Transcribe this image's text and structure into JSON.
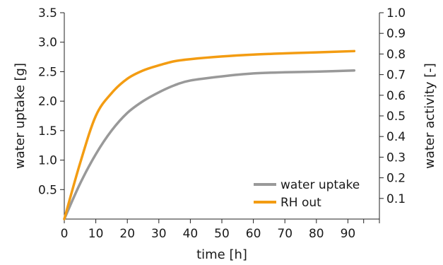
{
  "chart_data": {
    "type": "line",
    "xlabel": "time [h]",
    "ylabel_left": "water uptake [g]",
    "ylabel_right": "water activity [-]",
    "xlim": [
      0,
      100
    ],
    "ylim_left": [
      0,
      3.5
    ],
    "ylim_right": [
      0,
      1.0
    ],
    "x_ticks": [
      0,
      10,
      20,
      30,
      40,
      50,
      60,
      70,
      80,
      90
    ],
    "x_tick_labels": [
      "0",
      "10",
      "20",
      "30",
      "40",
      "50",
      "60",
      "70",
      "80",
      "90"
    ],
    "y_left_ticks": [
      0.5,
      1.0,
      1.5,
      2.0,
      2.5,
      3.0,
      3.5
    ],
    "y_left_tick_labels": [
      "0.5",
      "1.0",
      "1.5",
      "2.0",
      "2.5",
      "3.0",
      "3.5"
    ],
    "y_right_ticks": [
      0.1,
      0.2,
      0.3,
      0.4,
      0.5,
      0.6,
      0.7,
      0.8,
      0.9,
      1.0
    ],
    "y_right_tick_labels": [
      "0.1",
      "0.2",
      "0.3",
      "0.4",
      "0.5",
      "0.6",
      "0.7",
      "0.8",
      "0.9",
      "1.0"
    ],
    "grid": false,
    "legend_position": "bottom-right",
    "series": [
      {
        "name": "water uptake",
        "axis": "left",
        "color": "#999999",
        "x": [
          0,
          5,
          10,
          15,
          20,
          25,
          30,
          35,
          40,
          50,
          60,
          70,
          80,
          92
        ],
        "y": [
          0.0,
          0.6,
          1.1,
          1.5,
          1.8,
          2.0,
          2.15,
          2.27,
          2.35,
          2.42,
          2.47,
          2.49,
          2.5,
          2.52
        ]
      },
      {
        "name": "RH out",
        "axis": "right",
        "color": "#f39c12",
        "x": [
          0,
          5,
          10,
          15,
          20,
          25,
          30,
          35,
          40,
          50,
          60,
          70,
          80,
          92
        ],
        "y": [
          0.0,
          0.27,
          0.5,
          0.61,
          0.68,
          0.72,
          0.745,
          0.765,
          0.775,
          0.788,
          0.797,
          0.803,
          0.808,
          0.814
        ]
      }
    ]
  }
}
